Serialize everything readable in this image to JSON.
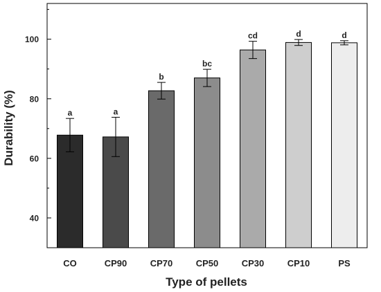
{
  "chart_data": {
    "type": "bar",
    "title": "",
    "xlabel": "Type of pellets",
    "ylabel": "Durability (%)",
    "ylim": [
      30,
      112
    ],
    "yticks": [
      40,
      60,
      80,
      100
    ],
    "categories": [
      "CO",
      "CP90",
      "CP70",
      "CP50",
      "CP30",
      "CP10",
      "PS"
    ],
    "values": [
      67.8,
      67.2,
      82.7,
      87.0,
      96.4,
      98.9,
      98.8
    ],
    "errors": [
      5.6,
      6.6,
      2.8,
      2.9,
      2.9,
      1.0,
      0.7
    ],
    "letters": [
      "a",
      "a",
      "b",
      "bc",
      "cd",
      "d",
      "d"
    ],
    "colors": [
      "#2b2b2b",
      "#4a4a4a",
      "#6a6a6a",
      "#8c8c8c",
      "#aaaaaa",
      "#cecece",
      "#ededed"
    ],
    "grid": false,
    "legend": "none"
  }
}
